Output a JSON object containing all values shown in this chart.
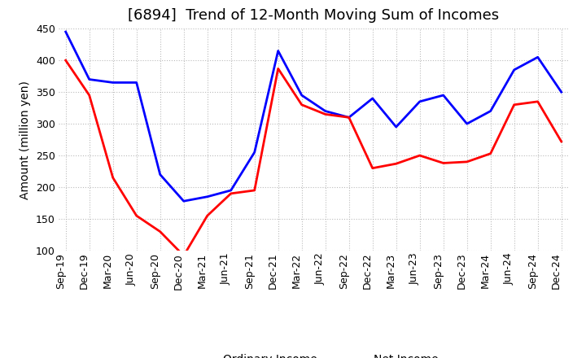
{
  "title": "[6894]  Trend of 12-Month Moving Sum of Incomes",
  "ylabel": "Amount (million yen)",
  "ylim": [
    100,
    450
  ],
  "yticks": [
    100,
    150,
    200,
    250,
    300,
    350,
    400,
    450
  ],
  "labels": [
    "Sep-19",
    "Dec-19",
    "Mar-20",
    "Jun-20",
    "Sep-20",
    "Dec-20",
    "Mar-21",
    "Jun-21",
    "Sep-21",
    "Dec-21",
    "Mar-22",
    "Jun-22",
    "Sep-22",
    "Dec-22",
    "Mar-23",
    "Jun-23",
    "Sep-23",
    "Dec-23",
    "Mar-24",
    "Jun-24",
    "Sep-24",
    "Dec-24"
  ],
  "ordinary_income": [
    445,
    370,
    365,
    365,
    220,
    178,
    185,
    195,
    255,
    415,
    345,
    320,
    310,
    340,
    295,
    335,
    345,
    300,
    320,
    385,
    405,
    350
  ],
  "net_income": [
    400,
    345,
    215,
    155,
    130,
    92,
    155,
    190,
    195,
    387,
    330,
    315,
    310,
    230,
    237,
    250,
    238,
    240,
    253,
    330,
    335,
    272
  ],
  "ordinary_color": "#0000ff",
  "net_color": "#ff0000",
  "line_width": 2.0,
  "background_color": "#ffffff",
  "grid_color": "#bbbbbb",
  "title_fontsize": 13,
  "legend_fontsize": 10,
  "axis_fontsize": 9,
  "ylabel_fontsize": 10
}
